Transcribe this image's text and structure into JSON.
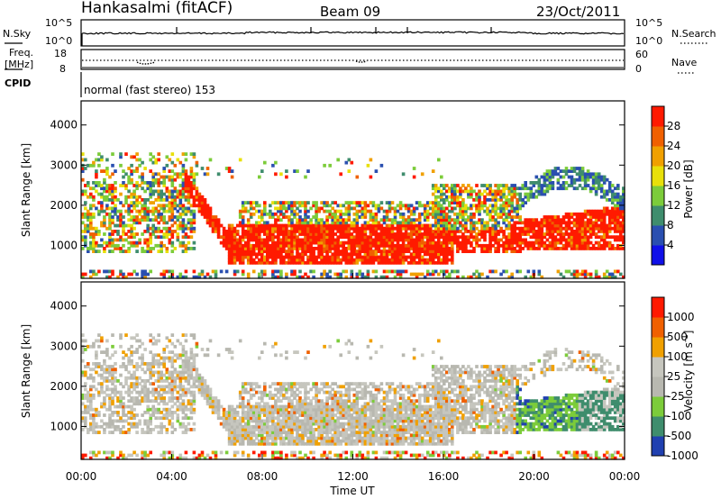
{
  "header": {
    "station": "Hankasalmi (fitACF)",
    "beam": "Beam 09",
    "date": "23/Oct/2011"
  },
  "summary": {
    "nsky_label": "N.Sky",
    "nsearch_label": "N.Search",
    "nsky_ticks": [
      "10^5",
      "10^0"
    ],
    "nsearch_ticks": [
      "10^5",
      "10^0"
    ],
    "freq_label_line1": "Freq.",
    "freq_label_line2": "[MHz]",
    "freq_ticks": [
      "18",
      "8"
    ],
    "nave_label": "Nave",
    "nave_ticks": [
      "60",
      "0"
    ],
    "cpid_label": "CPID",
    "cpid_text": "normal (fast stereo) 153"
  },
  "chart_data": [
    {
      "type": "heatmap",
      "name": "power-panel",
      "ylabel": "Slant Range [km]",
      "xlabel": "",
      "xlim": [
        0,
        24
      ],
      "ylim": [
        180,
        4600
      ],
      "yticks": [
        "1000",
        "2000",
        "3000",
        "4000"
      ],
      "colorbar": {
        "label": "Power [dB]",
        "ticks": [
          "4",
          "8",
          "12",
          "16",
          "20",
          "24",
          "28"
        ],
        "colors": [
          "#1010e8",
          "#2a4fb0",
          "#3f8d6d",
          "#7ccc3a",
          "#e8e00a",
          "#f0a000",
          "#f06000",
          "#ff1a00"
        ]
      }
    },
    {
      "type": "heatmap",
      "name": "velocity-panel",
      "ylabel": "Slant Range [km]",
      "xlabel": "Time UT",
      "xlim": [
        0,
        24
      ],
      "ylim": [
        180,
        4600
      ],
      "yticks": [
        "1000",
        "2000",
        "3000",
        "4000"
      ],
      "xticks": [
        "00:00",
        "04:00",
        "08:00",
        "12:00",
        "16:00",
        "20:00",
        "00:00"
      ],
      "colorbar": {
        "label": "Velocity [m s",
        "label_sup": "-1",
        "label_end": "]",
        "ticks": [
          "1000",
          "500",
          "100",
          "25",
          "-25",
          "-100",
          "-500",
          "-1000"
        ],
        "colors": [
          "#2040b0",
          "#3f8d6d",
          "#7ccc3a",
          "#b8b8b0",
          "#c6c6be",
          "#f0a000",
          "#f06000",
          "#ff1a00"
        ]
      }
    }
  ]
}
